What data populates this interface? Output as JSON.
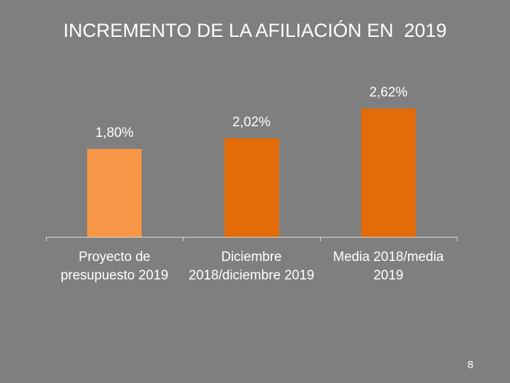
{
  "chart_data": {
    "type": "bar",
    "title": "INCREMENTO DE LA AFILIACIÓN EN  2019",
    "categories": [
      "Proyecto de presupuesto 2019",
      "Diciembre 2018/diciembre 2019",
      "Media 2018/media 2019"
    ],
    "values": [
      1.8,
      2.02,
      2.62
    ],
    "value_labels": [
      "1,80%",
      "2,02%",
      "2,62%"
    ],
    "colors": [
      "#f79646",
      "#e36c09",
      "#e36c09"
    ],
    "ylim": [
      0,
      3
    ]
  },
  "page_number": "8"
}
